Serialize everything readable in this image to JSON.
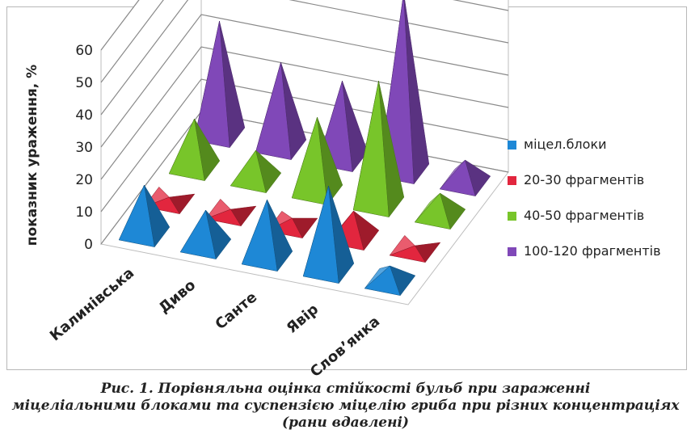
{
  "chart_data": {
    "type": "bar",
    "subtype": "3d-pyramid",
    "ylabel": "показник ураження, %",
    "ylim": [
      0,
      60
    ],
    "yticks": [
      0,
      10,
      20,
      30,
      40,
      50,
      60
    ],
    "categories": [
      "Калинівська",
      "Диво",
      "Санте",
      "Явір",
      "Слов’янка"
    ],
    "series": [
      {
        "name": "міцел.блоки",
        "color": "#1e88d6",
        "values": [
          15,
          11,
          18,
          26,
          5
        ]
      },
      {
        "name": "20-30 фрагментів",
        "color": "#e2263e",
        "values": [
          1,
          1,
          2,
          8,
          1
        ]
      },
      {
        "name": "40-50 фрагментів",
        "color": "#78c52a",
        "values": [
          15,
          9,
          23,
          38,
          7
        ]
      },
      {
        "name": "100-120 фрагментів",
        "color": "#8048b8",
        "values": [
          35,
          26,
          24,
          55,
          7
        ]
      }
    ],
    "grid": true,
    "legend": "right"
  },
  "caption": {
    "line1": "Рис. 1. Порівняльна оцінка стійкості бульб при зараженні",
    "line2": "міцеліальними блоками та суспензією міцелію гриба при різних концентраціях",
    "line3": "(рани вдавлені)"
  }
}
